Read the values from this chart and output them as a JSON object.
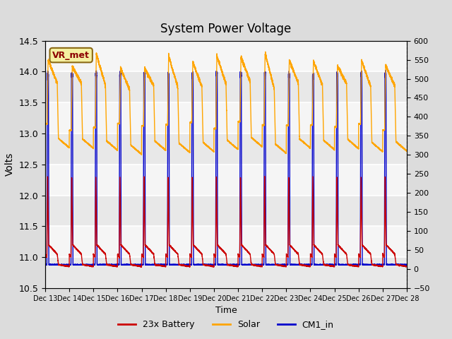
{
  "title": "System Power Voltage",
  "xlabel": "Time",
  "ylabel": "Volts",
  "ylim_left": [
    10.5,
    14.5
  ],
  "ylim_right": [
    -50,
    600
  ],
  "yticks_left": [
    10.5,
    11.0,
    11.5,
    12.0,
    12.5,
    13.0,
    13.5,
    14.0,
    14.5
  ],
  "yticks_right": [
    -50,
    0,
    50,
    100,
    150,
    200,
    250,
    300,
    350,
    400,
    450,
    500,
    550,
    600
  ],
  "xtick_labels": [
    "Dec 13",
    "Dec 14",
    "Dec 15",
    "Dec 16",
    "Dec 17",
    "Dec 18",
    "Dec 19",
    "Dec 20",
    "Dec 21",
    "Dec 22",
    "Dec 23",
    "Dec 24",
    "Dec 25",
    "Dec 26",
    "Dec 27",
    "Dec 28"
  ],
  "line_colors": {
    "battery": "#cc0000",
    "solar": "#ffa500",
    "cm1": "#0000cc"
  },
  "line_widths": {
    "battery": 1.0,
    "solar": 1.0,
    "cm1": 1.0
  },
  "legend_labels": [
    "23x Battery",
    "Solar",
    "CM1_in"
  ],
  "annotation_text": "VR_met",
  "background_color": "#dcdcdc",
  "plot_bg_color_light": "#f0f0f0",
  "plot_bg_color_dark": "#e0e0e0",
  "n_days": 15,
  "title_fontsize": 12
}
